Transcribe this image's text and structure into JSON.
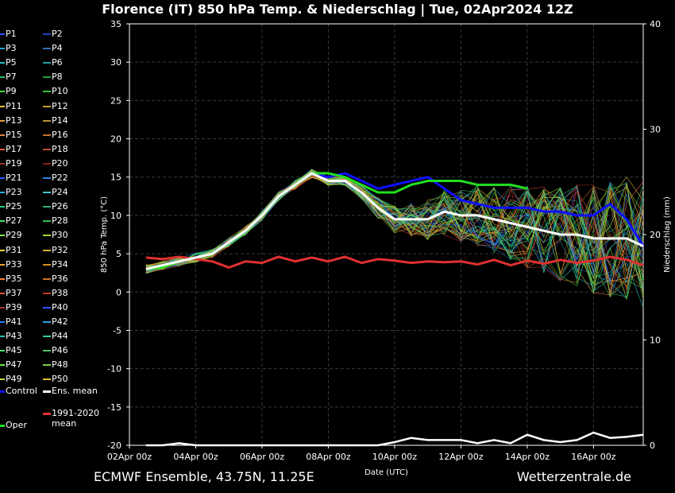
{
  "title": "Florence  (IT)  850 hPa Temp. & Niederschlag | Tue, 02Apr2024 12Z",
  "footer_left": "ECMWF Ensemble, 43.75N, 11.25E",
  "footer_right": "Wetterzentrale.de",
  "legend": {
    "members": [
      "P1",
      "P2",
      "P3",
      "P4",
      "P5",
      "P6",
      "P7",
      "P8",
      "P9",
      "P10",
      "P11",
      "P12",
      "P13",
      "P14",
      "P15",
      "P16",
      "P17",
      "P18",
      "P19",
      "P20",
      "P21",
      "P22",
      "P23",
      "P24",
      "P25",
      "P26",
      "P27",
      "P28",
      "P29",
      "P30",
      "P31",
      "P32",
      "P33",
      "P34",
      "P35",
      "P36",
      "P37",
      "P38",
      "P39",
      "P40",
      "P41",
      "P42",
      "P43",
      "P44",
      "P45",
      "P46",
      "P47",
      "P48",
      "P49",
      "P50"
    ],
    "member_colors": [
      "#3050ff",
      "#2040c0",
      "#20a0d0",
      "#3070b0",
      "#20c0c0",
      "#20a0a0",
      "#20c060",
      "#20a040",
      "#40e040",
      "#30c030",
      "#e0c040",
      "#c0a030",
      "#e0a040",
      "#c09030",
      "#e08040",
      "#c07030",
      "#e06040",
      "#c05030",
      "#a03020",
      "#802020",
      "#2060ff",
      "#3080e0",
      "#20b0e0",
      "#40c0d0",
      "#20d080",
      "#30b070",
      "#40e060",
      "#30c050",
      "#80f040",
      "#a0d030",
      "#f0d040",
      "#d0b030",
      "#f0a030",
      "#d09020",
      "#f08030",
      "#d07020",
      "#e05030",
      "#c04020",
      "#b03030",
      "#3050ff",
      "#2080ff",
      "#30a0e0",
      "#20c0b0",
      "#30d090",
      "#40e070",
      "#50c060",
      "#60f040",
      "#80d040",
      "#c0e040",
      "#e0c030"
    ],
    "control_label": "Control",
    "control_color": "#1010ff",
    "mean_label": "Ens. mean",
    "mean_color": "#ffffff",
    "clim_label_line1": "1991-2020",
    "clim_label_line2": "mean",
    "clim_color": "#e03030",
    "oper_label": "Oper",
    "oper_color": "#20e020"
  },
  "chart_data": {
    "type": "line",
    "title": "Florence  (IT)  850 hPa Temp. & Niederschlag | Tue, 02Apr2024 12Z",
    "xlabel": "Date (UTC)",
    "ylabel": "850 hPa Temp. (°C)",
    "y2label": "Niederschlag (mm)",
    "ylim": [
      -20,
      35
    ],
    "y2lim": [
      0,
      40
    ],
    "yticks": [
      -20,
      -15,
      -10,
      -5,
      0,
      5,
      10,
      15,
      20,
      25,
      30,
      35
    ],
    "y2ticks": [
      0,
      10,
      20,
      30,
      40
    ],
    "xticks": [
      "02Apr 00z",
      "04Apr 00z",
      "06Apr 00z",
      "08Apr 00z",
      "10Apr 00z",
      "12Apr 00z",
      "14Apr 00z",
      "16Apr 00z"
    ],
    "xrange_days": [
      0,
      15.5
    ],
    "grid": true,
    "legend_position": "left",
    "series": [
      {
        "name": "Control",
        "x": [
          0.5,
          1,
          1.5,
          2,
          2.5,
          3,
          3.5,
          4,
          4.5,
          5,
          5.5,
          6,
          6.5,
          7,
          7.5,
          8,
          8.5,
          9,
          9.5,
          10,
          10.5,
          11,
          11.5,
          12,
          12.5,
          13,
          13.5,
          14,
          14.5,
          15,
          15.5
        ],
        "values": [
          3,
          3.5,
          4,
          4.5,
          5,
          6.5,
          8,
          10,
          12.5,
          14,
          15.5,
          15,
          15.5,
          14.5,
          13.5,
          14,
          14.5,
          15,
          13.5,
          12,
          11.5,
          11,
          11,
          11,
          10.5,
          10.5,
          10,
          10,
          11.5,
          9.5,
          6
        ]
      },
      {
        "name": "Ens. mean",
        "x": [
          0.5,
          1,
          1.5,
          2,
          2.5,
          3,
          3.5,
          4,
          4.5,
          5,
          5.5,
          6,
          6.5,
          7,
          7.5,
          8,
          8.5,
          9,
          9.5,
          10,
          10.5,
          11,
          11.5,
          12,
          12.5,
          13,
          13.5,
          14,
          14.5,
          15,
          15.5
        ],
        "values": [
          3,
          3.5,
          4,
          4.5,
          5,
          6.5,
          8,
          10,
          12.5,
          14,
          15.5,
          14.5,
          14.5,
          13,
          11,
          9.5,
          9.5,
          9.5,
          10.5,
          10,
          10,
          9.5,
          9,
          8.5,
          8,
          7.5,
          7.5,
          7,
          7,
          7,
          6
        ]
      },
      {
        "name": "Oper",
        "x": [
          0.5,
          1,
          1.5,
          2,
          2.5,
          3,
          3.5,
          4,
          4.5,
          5,
          5.5,
          6,
          6.5,
          7,
          7.5,
          8,
          8.5,
          9,
          9.5,
          10,
          10.5,
          11,
          11.5,
          12
        ],
        "values": [
          3,
          3.2,
          4,
          4.5,
          5,
          6.5,
          8,
          10,
          12.5,
          14,
          15.5,
          15.5,
          15,
          14,
          13,
          13,
          14,
          14.5,
          14.5,
          14.5,
          14,
          14,
          14,
          13.5
        ]
      },
      {
        "name": "1991-2020 mean",
        "x": [
          0.5,
          1,
          1.5,
          2,
          2.5,
          3,
          3.5,
          4,
          4.5,
          5,
          5.5,
          6,
          6.5,
          7,
          7.5,
          8,
          8.5,
          9,
          9.5,
          10,
          10.5,
          11,
          11.5,
          12,
          12.5,
          13,
          13.5,
          14,
          14.5,
          15,
          15.5
        ],
        "values": [
          4.5,
          4.3,
          4.6,
          4.3,
          4,
          3.2,
          4,
          3.8,
          4.6,
          4,
          4.5,
          4,
          4.6,
          3.8,
          4.3,
          4.1,
          3.8,
          4,
          3.9,
          4,
          3.6,
          4.2,
          3.5,
          4.1,
          3.7,
          4.2,
          3.8,
          4.1,
          4.6,
          4.2,
          3.5
        ]
      }
    ],
    "precip_ens_mean": {
      "x": [
        0.5,
        1,
        1.5,
        2,
        2.5,
        3,
        3.5,
        4,
        4.5,
        5,
        5.5,
        6,
        6.5,
        7,
        7.5,
        8,
        8.5,
        9,
        9.5,
        10,
        10.5,
        11,
        11.5,
        12,
        12.5,
        13,
        13.5,
        14,
        14.5,
        15,
        15.5
      ],
      "values": [
        0,
        0,
        0.2,
        0,
        0,
        0,
        0,
        0,
        0,
        0,
        0,
        0,
        0,
        0,
        0,
        0.3,
        0.7,
        0.5,
        0.5,
        0.5,
        0.2,
        0.5,
        0.2,
        1,
        0.5,
        0.3,
        0.5,
        1.2,
        0.7,
        0.8,
        1
      ]
    }
  }
}
